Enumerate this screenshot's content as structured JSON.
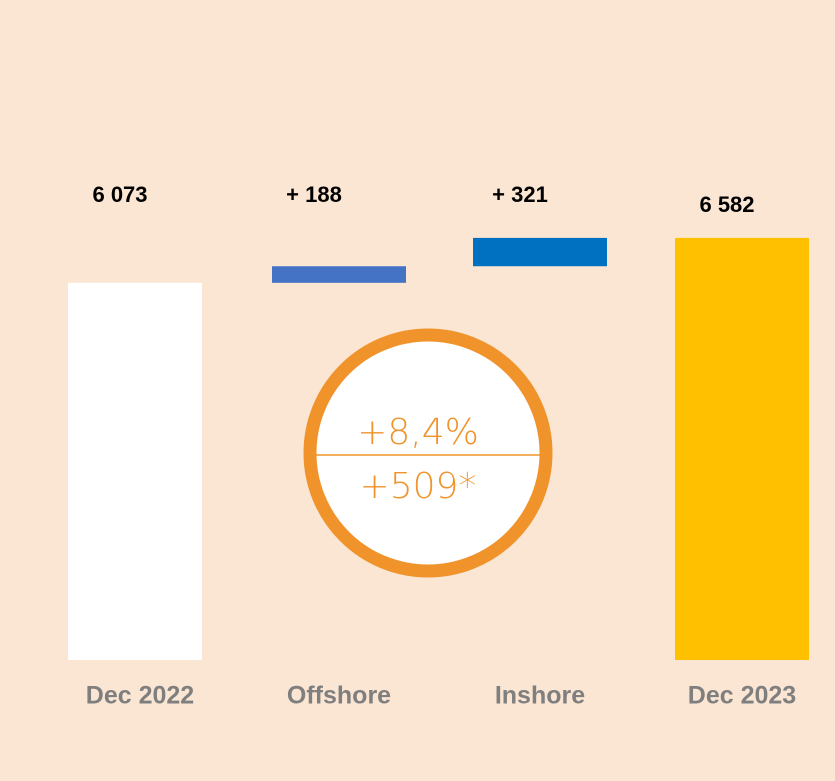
{
  "chart_data": {
    "type": "waterfall",
    "categories": [
      "Dec 2022",
      "Offshore",
      "Inshore",
      "Dec 2023"
    ],
    "values": [
      6073,
      188,
      321,
      6582
    ],
    "value_labels": [
      "6 073",
      "+ 188",
      "+ 321",
      "6 582"
    ],
    "colors": [
      "#ffffff",
      "#4472c4",
      "#0070c0",
      "#ffc000"
    ],
    "ylim": [
      1800,
      7000
    ],
    "annotations": [
      "+8,4%",
      "+509*"
    ]
  }
}
